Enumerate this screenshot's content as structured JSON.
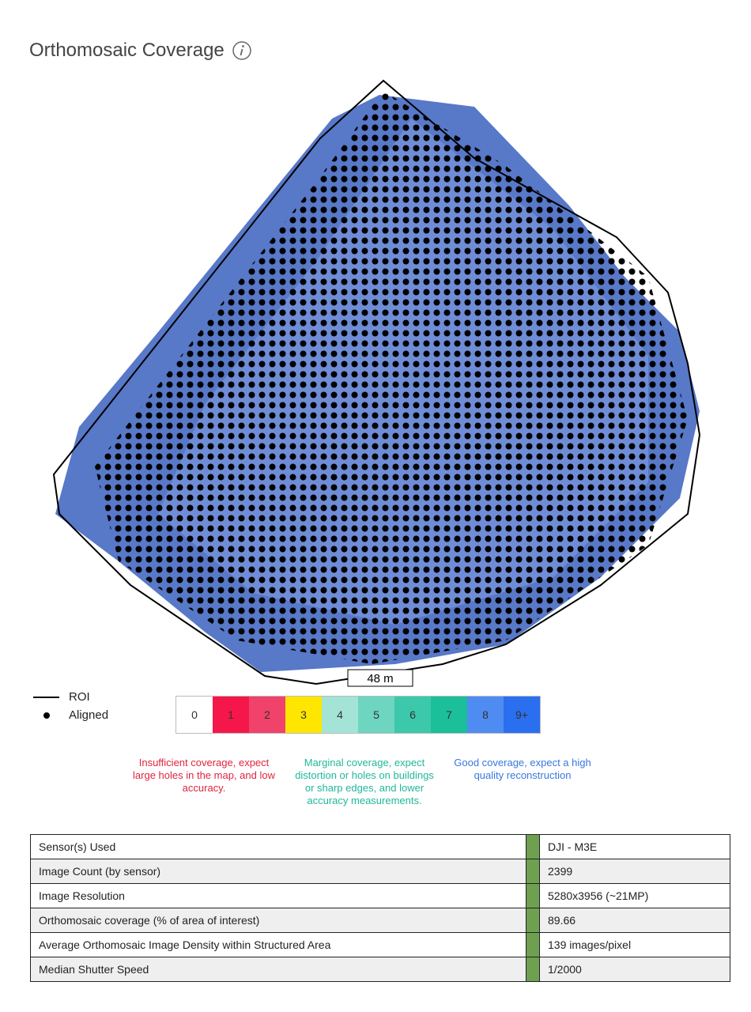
{
  "header": {
    "title": "Orthomosaic Coverage"
  },
  "map": {
    "scale_label": "48 m"
  },
  "legend": {
    "items": [
      "ROI",
      "Aligned"
    ]
  },
  "color_scale": {
    "labels": [
      "0",
      "1",
      "2",
      "3",
      "4",
      "5",
      "6",
      "7",
      "8",
      "9+"
    ]
  },
  "notes": [
    "Insufficient coverage, expect large holes in the map, and low accuracy.",
    "Marginal coverage, expect distortion or holes on buildings or sharp edges, and lower accuracy measurements.",
    "Good coverage, expect a high quality reconstruction"
  ],
  "table": {
    "rows": [
      [
        "Sensor(s) Used",
        "DJI - M3E"
      ],
      [
        "Image Count (by sensor)",
        "2399"
      ],
      [
        "Image Resolution",
        "5280x3956 (~21MP)"
      ],
      [
        "Orthomosaic coverage (% of area of interest)",
        "89.66"
      ],
      [
        "Average Orthomosaic Image Density within Structured Area",
        "139 images/pixel"
      ],
      [
        "Median Shutter Speed",
        "1/2000"
      ]
    ]
  }
}
